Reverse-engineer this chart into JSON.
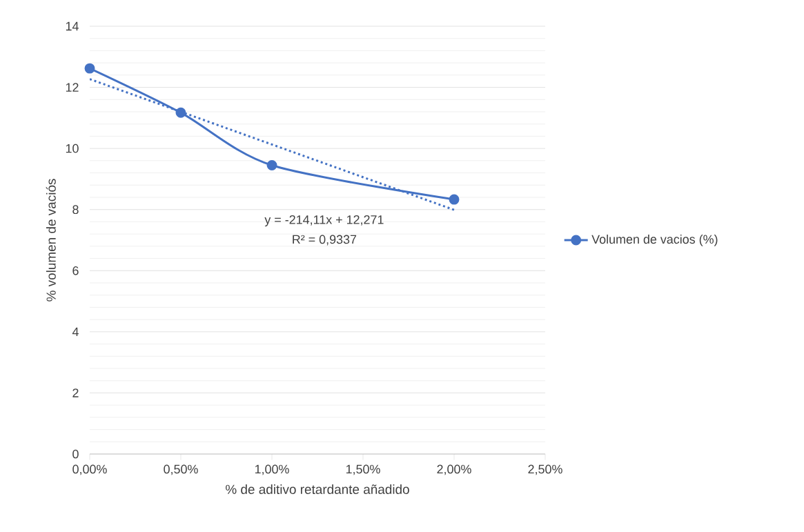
{
  "chart_data": {
    "type": "line",
    "xlabel": "% de aditivo retardante añadido",
    "ylabel": "% volumen de vaciós",
    "series": [
      {
        "name": "Volumen de vacios (%)",
        "color": "#4472c4",
        "x": [
          0,
          0.005,
          0.01,
          0.02
        ],
        "values": [
          12.62,
          11.17,
          9.45,
          8.33
        ],
        "marker": "circle",
        "line_style": "solid"
      },
      {
        "type": "line",
        "color": "#4472c4",
        "x": [
          0,
          0.02
        ],
        "values": [
          12.27,
          7.99
        ],
        "marker": "none",
        "line_style": "dotted"
      }
    ],
    "annotations": [
      "y = -214,11x + 12,271",
      "R² = 0,9337"
    ],
    "xlim": [
      0,
      0.025
    ],
    "xticks": [
      {
        "value": 0,
        "label": "0,00%"
      },
      {
        "value": 0.005,
        "label": "0,50%"
      },
      {
        "value": 0.01,
        "label": "1,00%"
      },
      {
        "value": 0.015,
        "label": "1,50%"
      },
      {
        "value": 0.02,
        "label": "2,00%"
      },
      {
        "value": 0.025,
        "label": "2,50%"
      }
    ],
    "ylim": [
      0,
      14
    ],
    "yticks": [
      0,
      2,
      4,
      6,
      8,
      10,
      12,
      14
    ],
    "grid": "y",
    "legend": "right"
  }
}
